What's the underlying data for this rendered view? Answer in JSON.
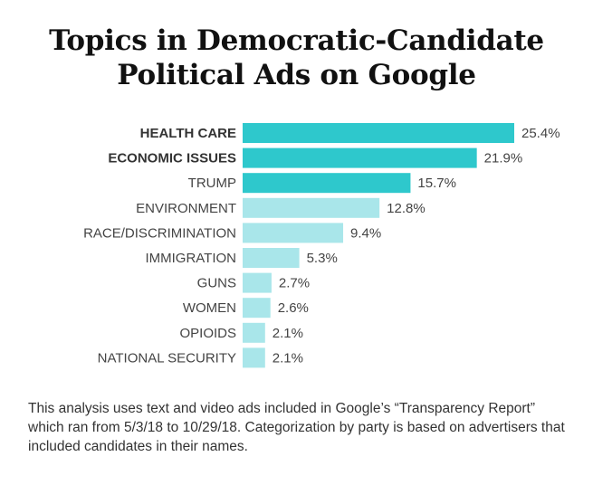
{
  "chart_data": {
    "type": "bar",
    "orientation": "horizontal",
    "title": "Topics in Democratic-Candidate Political Ads on Google",
    "title_lines": [
      "Topics in Democratic-Candidate",
      "Political Ads on Google"
    ],
    "categories": [
      "HEALTH CARE",
      "ECONOMIC ISSUES",
      "TRUMP",
      "ENVIRONMENT",
      "RACE/DISCRIMINATION",
      "IMMIGRATION",
      "GUNS",
      "WOMEN",
      "OPIOIDS",
      "NATIONAL SECURITY"
    ],
    "values": [
      25.4,
      21.9,
      15.7,
      12.8,
      9.4,
      5.3,
      2.7,
      2.6,
      2.1,
      2.1
    ],
    "value_labels": [
      "25.4%",
      "21.9%",
      "15.7%",
      "12.8%",
      "9.4%",
      "5.3%",
      "2.7%",
      "2.6%",
      "2.1%",
      "2.1%"
    ],
    "highlighted": [
      true,
      true,
      true,
      false,
      false,
      false,
      false,
      false,
      false,
      false
    ],
    "bold_labels": [
      true,
      true,
      false,
      false,
      false,
      false,
      false,
      false,
      false,
      false
    ],
    "xlabel": "",
    "ylabel": "",
    "xlim": [
      0,
      25.4
    ],
    "grid": false,
    "legend": "none",
    "colors": {
      "highlight": "#2ec8cc",
      "default": "#a9e6ea"
    }
  },
  "note": "This analysis uses text and video ads included in Google’s “Transparency Report” which ran from 5/3/18 to 10/29/18. Categorization by party is based on advertisers that included candidates in their names."
}
